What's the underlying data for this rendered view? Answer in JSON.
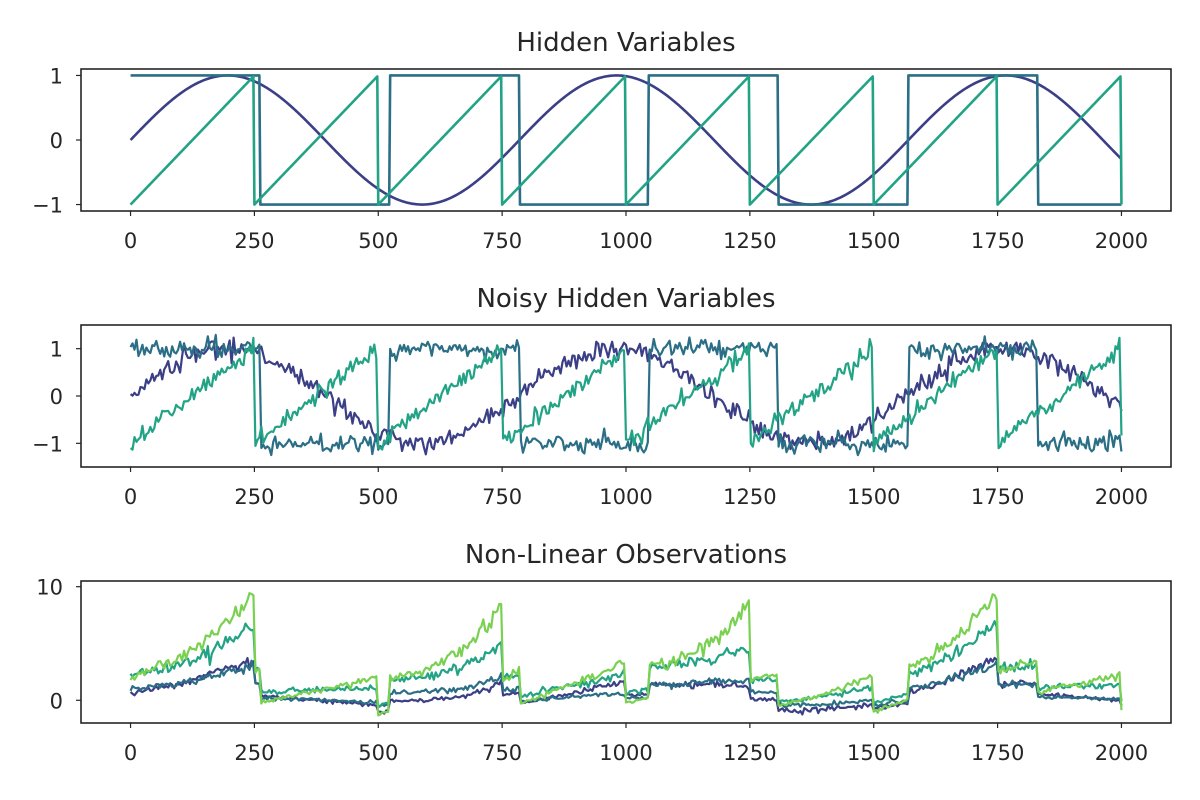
{
  "chart_data": [
    {
      "type": "line",
      "title": "Hidden Variables",
      "xlabel": "",
      "ylabel": "",
      "xlim": [
        -100,
        2100
      ],
      "ylim": [
        -1.1,
        1.1
      ],
      "xticks": [
        0,
        250,
        500,
        750,
        1000,
        1250,
        1500,
        1750,
        2000
      ],
      "yticks": [
        -1,
        0,
        1
      ],
      "ytick_labels": [
        "−1",
        "0",
        "1"
      ],
      "grid": false,
      "series": [
        {
          "color": "#3b3f85",
          "kind": "sine",
          "period": 785,
          "amplitude": 1,
          "x": [
            0,
            2000
          ]
        },
        {
          "color": "#2b6f86",
          "kind": "square",
          "period": 523,
          "amplitude": 1,
          "x": [
            0,
            2000
          ]
        },
        {
          "color": "#23a385",
          "kind": "sawtooth",
          "period": 250,
          "amplitude": 1,
          "x": [
            0,
            2000
          ]
        }
      ]
    },
    {
      "type": "line",
      "title": "Noisy Hidden Variables",
      "xlabel": "",
      "ylabel": "",
      "xlim": [
        -100,
        2100
      ],
      "ylim": [
        -1.5,
        1.5
      ],
      "xticks": [
        0,
        250,
        500,
        750,
        1000,
        1250,
        1500,
        1750,
        2000
      ],
      "yticks": [
        -1,
        0,
        1
      ],
      "ytick_labels": [
        "−1",
        "0",
        "1"
      ],
      "grid": false,
      "noise_std": 0.1,
      "series": [
        {
          "color": "#3b3f85",
          "kind": "sine",
          "period": 785,
          "amplitude": 1,
          "x": [
            0,
            2000
          ]
        },
        {
          "color": "#2b6f86",
          "kind": "square",
          "period": 523,
          "amplitude": 1,
          "x": [
            0,
            2000
          ]
        },
        {
          "color": "#23a385",
          "kind": "sawtooth",
          "period": 250,
          "amplitude": 1,
          "x": [
            0,
            2000
          ]
        }
      ]
    },
    {
      "type": "line",
      "title": "Non-Linear Observations",
      "xlabel": "",
      "ylabel": "",
      "xlim": [
        -100,
        2100
      ],
      "ylim": [
        -2,
        10.5
      ],
      "xticks": [
        0,
        250,
        500,
        750,
        1000,
        1250,
        1500,
        1750,
        2000
      ],
      "yticks": [
        0,
        10
      ],
      "ytick_labels": [
        "0",
        "10"
      ],
      "grid": false,
      "series": [
        {
          "color": "#3b3f85",
          "kind": "mix",
          "weights": [
            0.8,
            0.5,
            0.3
          ],
          "offset": 0.4,
          "x": [
            0,
            2000
          ]
        },
        {
          "color": "#2b6f86",
          "kind": "mix",
          "weights": [
            0.4,
            0.6,
            0.2
          ],
          "offset": 0.6,
          "x": [
            0,
            2000
          ]
        },
        {
          "color": "#23a385",
          "kind": "mix",
          "weights": [
            0.6,
            1.0,
            0.7
          ],
          "offset": 1.8,
          "x": [
            0,
            2000
          ]
        },
        {
          "color": "#7ad151",
          "kind": "mix",
          "weights": [
            0.5,
            1.4,
            1.6
          ],
          "offset": 2.2,
          "x": [
            0,
            2000
          ]
        }
      ]
    }
  ]
}
